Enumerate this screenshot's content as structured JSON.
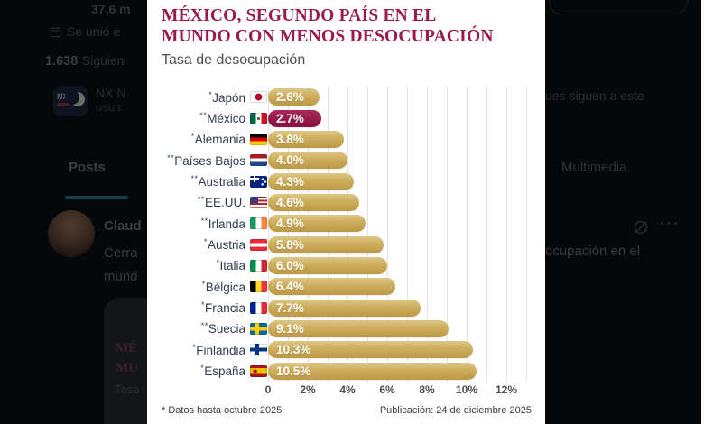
{
  "background": {
    "top_stat": "37,6 m",
    "joined_fragment": "Se unió e",
    "following_count": "1.638",
    "following_label": "Siguien",
    "context_name": "NX N",
    "context_handle": "usua",
    "context_right": "ues siguen a este",
    "tab_posts": "Posts",
    "tab_multimedia": "Multimedia",
    "author_fragment": "Claud",
    "post_line1": "Cerra",
    "post_line2": "mund",
    "post_right_fragment": "ocupación en el",
    "ellipsis": "···",
    "nx_logo_text": "NX",
    "card": {
      "line1": "MÉ",
      "line2": "MU",
      "line3": "Tasa"
    },
    "accent_underline": "#12414f"
  },
  "lightbox": {
    "title_line1": "MÉXICO, SEGUNDO PAÍS EN EL",
    "title_line2": "MUNDO CON MENOS DESOCUPACIÓN",
    "subtitle": "Tasa de desocupación",
    "footnote": "* Datos hasta octubre 2025",
    "publication": "Publicación: 24 de diciembre 2025",
    "accent_color": "#9b1c4c",
    "bar_color": "#c9a955",
    "highlight_color": "#93184a"
  },
  "chart_data": {
    "type": "bar",
    "orientation": "horizontal",
    "title": "MÉXICO, SEGUNDO PAÍS EN EL MUNDO CON MENOS DESOCUPACIÓN",
    "subtitle": "Tasa de desocupación",
    "unit": "%",
    "xlim": [
      0,
      12
    ],
    "x_ticks": [
      "0",
      "2%",
      "4%",
      "6%",
      "8%",
      "10%",
      "12%"
    ],
    "grid": true,
    "legend": "none",
    "highlight_index": 1,
    "rows": [
      {
        "stars": "*",
        "country": "Japón",
        "value": 2.6,
        "label": "2.6%",
        "flag": {
          "t": "disc",
          "bg": "#ffffff",
          "fg": "#bc002d"
        }
      },
      {
        "stars": "**",
        "country": "México",
        "value": 2.7,
        "label": "2.7%",
        "flag": {
          "t": "v",
          "c": [
            "#006847",
            "#ffffff",
            "#ce1126"
          ],
          "dot": {
            "x": 50,
            "c": "#6f5b2e"
          }
        }
      },
      {
        "stars": "*",
        "country": "Alemania",
        "value": 3.8,
        "label": "3.8%",
        "flag": {
          "t": "h",
          "c": [
            "#000000",
            "#dd0000",
            "#ffce00"
          ]
        }
      },
      {
        "stars": "**",
        "country": "Países Bajos",
        "value": 4.0,
        "label": "4.0%",
        "flag": {
          "t": "h",
          "c": [
            "#ae1c28",
            "#ffffff",
            "#21468b"
          ]
        }
      },
      {
        "stars": "**",
        "country": "Australia",
        "value": 4.3,
        "label": "4.3%",
        "flag": {
          "t": "au",
          "bg": "#00247d"
        }
      },
      {
        "stars": "**",
        "country": "EE.UU.",
        "value": 4.6,
        "label": "4.6%",
        "flag": {
          "t": "us"
        }
      },
      {
        "stars": "**",
        "country": "Irlanda",
        "value": 4.9,
        "label": "4.9%",
        "flag": {
          "t": "v",
          "c": [
            "#169b62",
            "#ffffff",
            "#ff883e"
          ]
        }
      },
      {
        "stars": "*",
        "country": "Austria",
        "value": 5.8,
        "label": "5.8%",
        "flag": {
          "t": "h",
          "c": [
            "#ed2939",
            "#ffffff",
            "#ed2939"
          ]
        }
      },
      {
        "stars": "*",
        "country": "Italia",
        "value": 6.0,
        "label": "6.0%",
        "flag": {
          "t": "v",
          "c": [
            "#009246",
            "#ffffff",
            "#ce2b37"
          ]
        }
      },
      {
        "stars": "*",
        "country": "Bélgica",
        "value": 6.4,
        "label": "6.4%",
        "flag": {
          "t": "v",
          "c": [
            "#000000",
            "#fdda24",
            "#ef3340"
          ]
        }
      },
      {
        "stars": "*",
        "country": "Francia",
        "value": 7.7,
        "label": "7.7%",
        "flag": {
          "t": "v",
          "c": [
            "#002395",
            "#ffffff",
            "#ed2939"
          ]
        }
      },
      {
        "stars": "**",
        "country": "Suecia",
        "value": 9.1,
        "label": "9.1%",
        "flag": {
          "t": "cross",
          "bg": "#006aa7",
          "fg": "#fecc00"
        }
      },
      {
        "stars": "*",
        "country": "Finlandia",
        "value": 10.3,
        "label": "10.3%",
        "flag": {
          "t": "cross",
          "bg": "#ffffff",
          "fg": "#003580"
        }
      },
      {
        "stars": "*",
        "country": "España",
        "value": 10.5,
        "label": "10.5%",
        "flag": {
          "t": "h",
          "c": [
            "#aa151b",
            "#f1bf00",
            "#aa151b"
          ],
          "stops": [
            25,
            75
          ],
          "dot": {
            "x": 30,
            "c": "#aa151b"
          }
        }
      }
    ]
  }
}
